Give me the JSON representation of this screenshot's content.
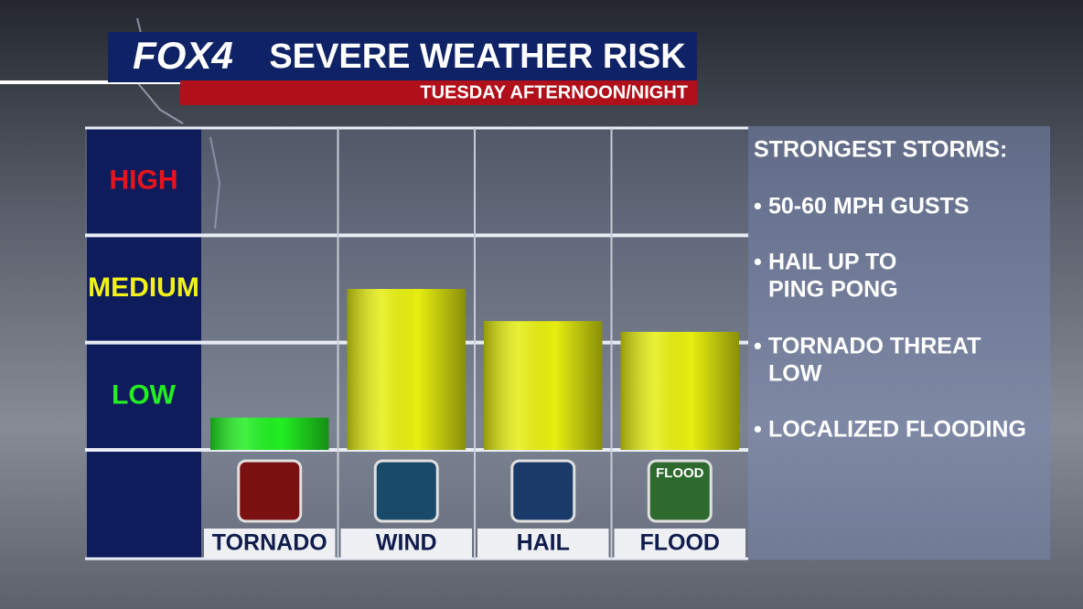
{
  "chart_data": {
    "type": "bar",
    "brand": "FOX4",
    "title": "SEVERE WEATHER RISK",
    "subtitle": "TUESDAY AFTERNOON/NIGHT",
    "categories": [
      "TORNADO",
      "WIND",
      "HAIL",
      "FLOOD"
    ],
    "values": [
      0.3,
      1.5,
      1.2,
      1.1
    ],
    "colors": [
      "#22ee22",
      "#e6ee10",
      "#e6ee10",
      "#e6ee10"
    ],
    "ylim": [
      0,
      3
    ],
    "yticks": [
      {
        "value": 0.5,
        "label": "LOW"
      },
      {
        "value": 1.5,
        "label": "MEDIUM"
      },
      {
        "value": 2.5,
        "label": "HIGH"
      }
    ],
    "ytick_colors": [
      "#22ee22",
      "#f2f21a",
      "#e8141c"
    ],
    "grid": true,
    "side_panel": {
      "heading": "STRONGEST STORMS:",
      "bullets": [
        [
          "50-60 MPH GUSTS"
        ],
        [
          "HAIL UP TO",
          "PING PONG"
        ],
        [
          "TORNADO THREAT",
          "LOW"
        ],
        [
          "LOCALIZED FLOODING"
        ]
      ]
    }
  }
}
